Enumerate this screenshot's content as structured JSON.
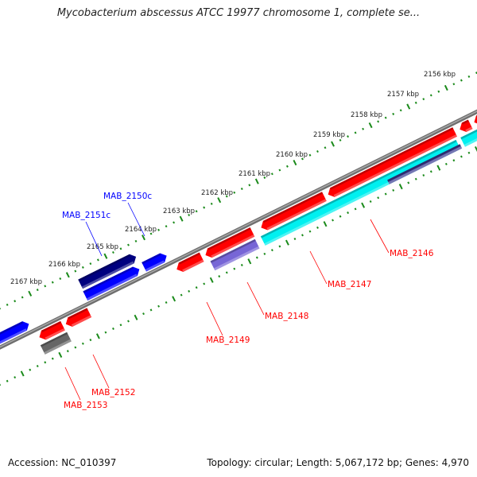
{
  "title": "Mycobacterium abscessus ATCC 19977 chromosome 1, complete se...",
  "footer": {
    "accession": "Accession: NC_010397",
    "summary": "Topology: circular; Length: 5,067,172 bp; Genes: 4,970"
  },
  "colors": {
    "backbone": "#808080",
    "ticks": "#1a8a1a",
    "forward_label": "#0000ff",
    "reverse_label": "#ff0000"
  },
  "ruler": {
    "labels": [
      {
        "kbp": 2167,
        "text": "2167 kbp"
      },
      {
        "kbp": 2166,
        "text": "2166 kbp"
      },
      {
        "kbp": 2165,
        "text": "2165 kbp"
      },
      {
        "kbp": 2164,
        "text": "2164 kbp"
      },
      {
        "kbp": 2163,
        "text": "2163 kbp"
      },
      {
        "kbp": 2162,
        "text": "2162 kbp"
      },
      {
        "kbp": 2161,
        "text": "2161 kbp"
      },
      {
        "kbp": 2160,
        "text": "2160 kbp"
      },
      {
        "kbp": 2159,
        "text": "2159 kbp"
      },
      {
        "kbp": 2158,
        "text": "2158 kbp"
      },
      {
        "kbp": 2157,
        "text": "2157 kbp"
      },
      {
        "kbp": 2156,
        "text": "2156 kbp"
      }
    ],
    "range_kbp": [
      2154.8,
      2168.6
    ],
    "minor_step_kbp": 0.2
  },
  "features": [
    {
      "start": 2168.39,
      "end": 2167.34,
      "lane": "above1",
      "strand": "+",
      "color": "#0000ff"
    },
    {
      "start": 2165.83,
      "end": 2164.36,
      "lane": "above2",
      "strand": "+",
      "color": "#000080"
    },
    {
      "start": 2165.85,
      "end": 2164.42,
      "lane": "above1",
      "strand": "+",
      "color": "#0000ff"
    },
    {
      "start": 2164.3,
      "end": 2163.7,
      "lane": "above1",
      "strand": "+",
      "color": "#0000ff"
    },
    {
      "start": 2167.26,
      "end": 2166.64,
      "lane": "below1",
      "strand": "-",
      "color": "#ff0000"
    },
    {
      "start": 2166.56,
      "end": 2165.94,
      "lane": "below1",
      "strand": "-",
      "color": "#ff0000"
    },
    {
      "start": 2167.32,
      "end": 2166.62,
      "lane": "below2",
      "strand": "0",
      "color": "#666666"
    },
    {
      "start": 2163.63,
      "end": 2162.97,
      "lane": "below1",
      "strand": "-",
      "color": "#ff0000"
    },
    {
      "start": 2162.87,
      "end": 2161.63,
      "lane": "below1",
      "strand": "-",
      "color": "#ff0000"
    },
    {
      "start": 2162.83,
      "end": 2161.65,
      "lane": "below2",
      "strand": "0",
      "color": "#7766d6"
    },
    {
      "start": 2161.4,
      "end": 2159.73,
      "lane": "below1",
      "strand": "-",
      "color": "#ff0000"
    },
    {
      "start": 2161.5,
      "end": 2156.34,
      "lane": "below2",
      "strand": "0",
      "color": "#00f0f0"
    },
    {
      "start": 2156.22,
      "end": 2155.02,
      "lane": "below2",
      "strand": "0",
      "color": "#00f0f0"
    },
    {
      "start": 2159.63,
      "end": 2156.28,
      "lane": "below1",
      "strand": "-",
      "color": "#ff0000"
    },
    {
      "start": 2156.15,
      "end": 2155.87,
      "lane": "below1",
      "strand": "-",
      "color": "#ff0000"
    },
    {
      "start": 2155.77,
      "end": 2155.02,
      "lane": "below1",
      "strand": "-",
      "color": "#ff0000"
    },
    {
      "start": 2158.22,
      "end": 2156.3,
      "lane": "below2b",
      "strand": "0",
      "color": "#3c3c92"
    }
  ],
  "gene_labels": [
    {
      "text": "MAB_2150c",
      "color": "#0000ff"
    },
    {
      "text": "MAB_2151c",
      "color": "#0000ff"
    },
    {
      "text": "MAB_2149",
      "color": "#ff0000"
    },
    {
      "text": "MAB_2148",
      "color": "#ff0000"
    },
    {
      "text": "MAB_2147",
      "color": "#ff0000"
    },
    {
      "text": "MAB_2146",
      "color": "#ff0000"
    },
    {
      "text": "MAB_2152",
      "color": "#ff0000"
    },
    {
      "text": "MAB_2153",
      "color": "#ff0000"
    }
  ]
}
